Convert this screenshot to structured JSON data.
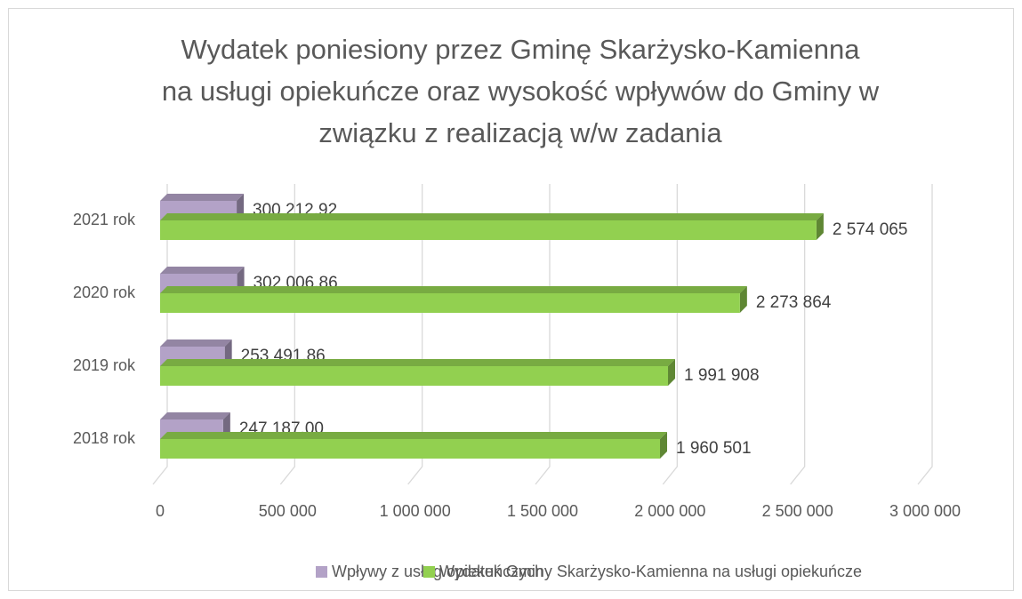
{
  "chart_data": {
    "type": "bar3d",
    "title": [
      "Wydatek poniesiony przez Gminę Skarżysko-Kamienna",
      "na usługi opiekuńcze oraz wysokość wpływów do Gminy w",
      "związku z realizacją w/w zadania"
    ],
    "categories": [
      "2018 rok",
      "2019 rok",
      "2020 rok",
      "2021 rok"
    ],
    "series": [
      {
        "name": "Wpływy z usług opiekuńczych",
        "color": "#b3a2c7",
        "values": [
          247187.0,
          253491.86,
          302006.86,
          300212.92
        ],
        "value_labels": [
          "247 187,00",
          "253 491,86",
          "302 006,86",
          "300 212,92"
        ]
      },
      {
        "name": "Wydatek Gminy Skarżysko-Kamienna na usługi opiekuńcze",
        "color": "#92d050",
        "values": [
          1960501,
          1991908,
          2273864,
          2574065
        ],
        "value_labels": [
          "1 960 501",
          "1 991 908",
          "2 273 864",
          "2 574 065"
        ]
      }
    ],
    "xlim": [
      0,
      3000000
    ],
    "xticks": [
      0,
      {
        "value": 500000,
        "label": "500 000"
      },
      {
        "value": 1000000,
        "label": "1 000 000"
      },
      {
        "value": 1500000,
        "label": "1 500 000"
      },
      {
        "value": 2000000,
        "label": "2 000 000"
      },
      {
        "value": 2500000,
        "label": "2 500 000"
      },
      {
        "value": 3000000,
        "label": "3 000 000"
      }
    ],
    "grid": true,
    "legend": "bottom"
  }
}
